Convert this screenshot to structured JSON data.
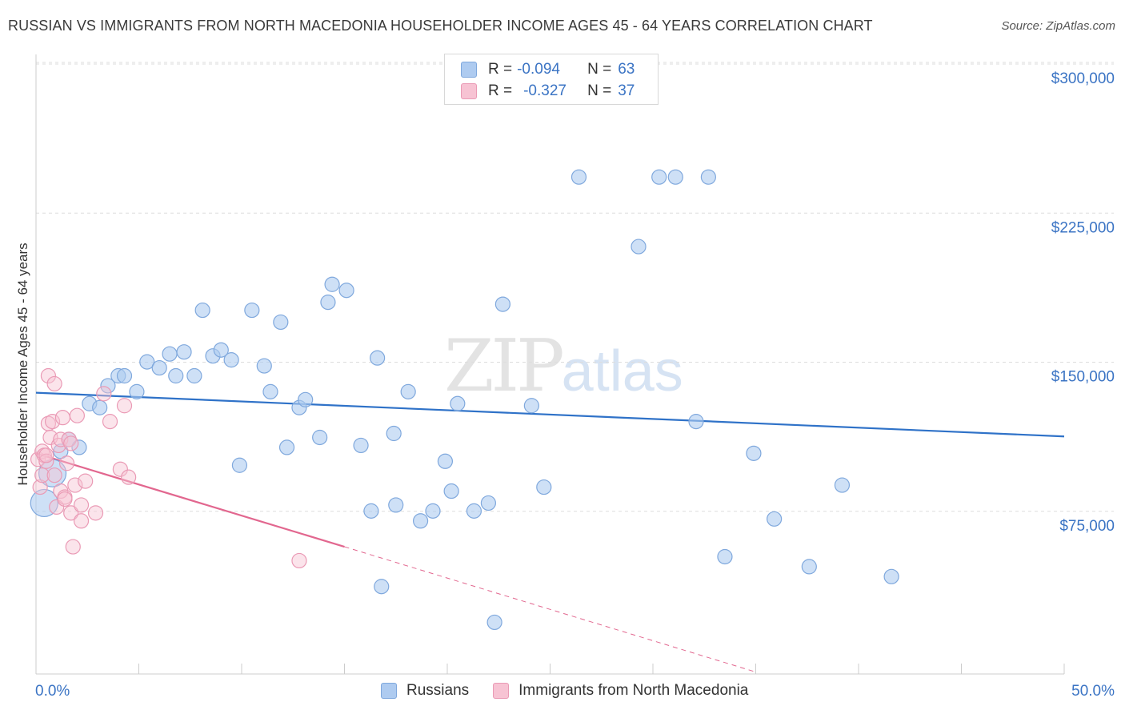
{
  "header": {
    "title": "RUSSIAN VS IMMIGRANTS FROM NORTH MACEDONIA HOUSEHOLDER INCOME AGES 45 - 64 YEARS CORRELATION CHART",
    "source": "Source: ZipAtlas.com"
  },
  "watermark": {
    "zip": "ZIP",
    "atlas": "atlas"
  },
  "legend_top": {
    "rows": [
      {
        "r_label": "R =",
        "r_value": "-0.094",
        "n_label": "N =",
        "n_value": "63"
      },
      {
        "r_label": "R =",
        "r_value": "-0.327",
        "n_label": "N =",
        "n_value": "37"
      }
    ]
  },
  "legend_bottom": {
    "series1": "Russians",
    "series2": "Immigrants from North Macedonia"
  },
  "colors": {
    "blue_fill": "#aecbf0",
    "blue_stroke": "#7fa8dd",
    "blue_line": "#2f72c8",
    "pink_fill": "#f7c3d3",
    "pink_stroke": "#ea9ab5",
    "pink_line": "#e2678f",
    "tick_text": "#3b74c4",
    "grid": "#dddddd"
  },
  "chart_data": {
    "type": "scatter",
    "title": "RUSSIAN VS IMMIGRANTS FROM NORTH MACEDONIA HOUSEHOLDER INCOME AGES 45 - 64 YEARS CORRELATION CHART",
    "xlabel": "",
    "ylabel": "Householder Income Ages 45 - 64 years",
    "xlim": [
      0,
      50
    ],
    "ylim": [
      0,
      315000
    ],
    "x_tick_labels": [
      "0.0%",
      "50.0%"
    ],
    "y_ticks": [
      75000,
      150000,
      225000,
      300000
    ],
    "y_tick_labels": [
      "$75,000",
      "$150,000",
      "$225,000",
      "$300,000"
    ],
    "grid": true,
    "series": [
      {
        "name": "Russians",
        "color": "#aecbf0",
        "R": -0.094,
        "N": 63,
        "trend": {
          "x": [
            0,
            50
          ],
          "y": [
            141500,
            119500
          ]
        },
        "points": [
          {
            "x": 0.4,
            "y": 86000,
            "big": true
          },
          {
            "x": 0.8,
            "y": 101000,
            "big": true
          },
          {
            "x": 1.2,
            "y": 112000
          },
          {
            "x": 1.6,
            "y": 118000
          },
          {
            "x": 2.1,
            "y": 114000
          },
          {
            "x": 2.6,
            "y": 136000
          },
          {
            "x": 3.1,
            "y": 134000
          },
          {
            "x": 3.5,
            "y": 145000
          },
          {
            "x": 4.0,
            "y": 150000
          },
          {
            "x": 4.3,
            "y": 150000
          },
          {
            "x": 4.9,
            "y": 142000
          },
          {
            "x": 5.4,
            "y": 157000
          },
          {
            "x": 6.0,
            "y": 154000
          },
          {
            "x": 6.5,
            "y": 161000
          },
          {
            "x": 6.8,
            "y": 150000
          },
          {
            "x": 7.2,
            "y": 162000
          },
          {
            "x": 7.7,
            "y": 150000
          },
          {
            "x": 8.1,
            "y": 183000
          },
          {
            "x": 8.6,
            "y": 160000
          },
          {
            "x": 9.0,
            "y": 163000
          },
          {
            "x": 9.5,
            "y": 158000
          },
          {
            "x": 9.9,
            "y": 105000
          },
          {
            "x": 10.5,
            "y": 183000
          },
          {
            "x": 11.1,
            "y": 155000
          },
          {
            "x": 11.4,
            "y": 142000
          },
          {
            "x": 11.9,
            "y": 177000
          },
          {
            "x": 12.2,
            "y": 114000
          },
          {
            "x": 12.8,
            "y": 134000
          },
          {
            "x": 13.1,
            "y": 138000
          },
          {
            "x": 13.8,
            "y": 119000
          },
          {
            "x": 14.2,
            "y": 187000
          },
          {
            "x": 14.4,
            "y": 196000
          },
          {
            "x": 15.1,
            "y": 193000
          },
          {
            "x": 15.8,
            "y": 115000
          },
          {
            "x": 16.3,
            "y": 82000
          },
          {
            "x": 16.8,
            "y": 44000
          },
          {
            "x": 16.6,
            "y": 159000
          },
          {
            "x": 17.4,
            "y": 121000
          },
          {
            "x": 17.5,
            "y": 85000
          },
          {
            "x": 18.1,
            "y": 142000
          },
          {
            "x": 18.7,
            "y": 77000
          },
          {
            "x": 19.3,
            "y": 82000
          },
          {
            "x": 19.9,
            "y": 107000
          },
          {
            "x": 20.2,
            "y": 92000
          },
          {
            "x": 20.5,
            "y": 136000
          },
          {
            "x": 21.3,
            "y": 82000
          },
          {
            "x": 22.0,
            "y": 86000
          },
          {
            "x": 22.3,
            "y": 26000
          },
          {
            "x": 22.7,
            "y": 186000
          },
          {
            "x": 24.1,
            "y": 135000
          },
          {
            "x": 24.7,
            "y": 94000
          },
          {
            "x": 26.4,
            "y": 250000
          },
          {
            "x": 29.3,
            "y": 215000
          },
          {
            "x": 30.3,
            "y": 250000
          },
          {
            "x": 31.1,
            "y": 250000
          },
          {
            "x": 32.1,
            "y": 127000
          },
          {
            "x": 32.7,
            "y": 250000
          },
          {
            "x": 33.5,
            "y": 59000
          },
          {
            "x": 34.9,
            "y": 111000
          },
          {
            "x": 35.9,
            "y": 78000
          },
          {
            "x": 37.6,
            "y": 54000
          },
          {
            "x": 39.2,
            "y": 95000
          },
          {
            "x": 41.6,
            "y": 49000
          }
        ]
      },
      {
        "name": "Immigrants from North Macedonia",
        "color": "#f7c3d3",
        "R": -0.327,
        "N": 37,
        "trend": {
          "x": [
            0,
            15
          ],
          "y": [
            111000,
            64000
          ]
        },
        "trend_dashed": {
          "x": [
            15,
            35
          ],
          "y": [
            64000,
            1000
          ]
        },
        "points": [
          {
            "x": 0.1,
            "y": 108000
          },
          {
            "x": 0.2,
            "y": 94000
          },
          {
            "x": 0.3,
            "y": 100000
          },
          {
            "x": 0.3,
            "y": 112000
          },
          {
            "x": 0.4,
            "y": 110000
          },
          {
            "x": 0.5,
            "y": 107000
          },
          {
            "x": 0.5,
            "y": 110000
          },
          {
            "x": 0.6,
            "y": 126000
          },
          {
            "x": 0.6,
            "y": 150000
          },
          {
            "x": 0.7,
            "y": 119000
          },
          {
            "x": 0.8,
            "y": 127000
          },
          {
            "x": 0.9,
            "y": 146000
          },
          {
            "x": 0.9,
            "y": 100000
          },
          {
            "x": 1.0,
            "y": 84000
          },
          {
            "x": 1.1,
            "y": 115000
          },
          {
            "x": 1.2,
            "y": 118000
          },
          {
            "x": 1.2,
            "y": 92000
          },
          {
            "x": 1.3,
            "y": 129000
          },
          {
            "x": 1.4,
            "y": 89000
          },
          {
            "x": 1.4,
            "y": 88000
          },
          {
            "x": 1.5,
            "y": 106000
          },
          {
            "x": 1.6,
            "y": 118000
          },
          {
            "x": 1.7,
            "y": 116000
          },
          {
            "x": 1.7,
            "y": 81000
          },
          {
            "x": 1.8,
            "y": 64000
          },
          {
            "x": 1.9,
            "y": 95000
          },
          {
            "x": 2.0,
            "y": 130000
          },
          {
            "x": 2.2,
            "y": 85000
          },
          {
            "x": 2.2,
            "y": 77000
          },
          {
            "x": 2.4,
            "y": 97000
          },
          {
            "x": 2.9,
            "y": 81000
          },
          {
            "x": 3.3,
            "y": 141000
          },
          {
            "x": 3.6,
            "y": 127000
          },
          {
            "x": 4.1,
            "y": 103000
          },
          {
            "x": 4.3,
            "y": 135000
          },
          {
            "x": 4.5,
            "y": 99000
          },
          {
            "x": 12.8,
            "y": 57000
          }
        ]
      }
    ]
  }
}
